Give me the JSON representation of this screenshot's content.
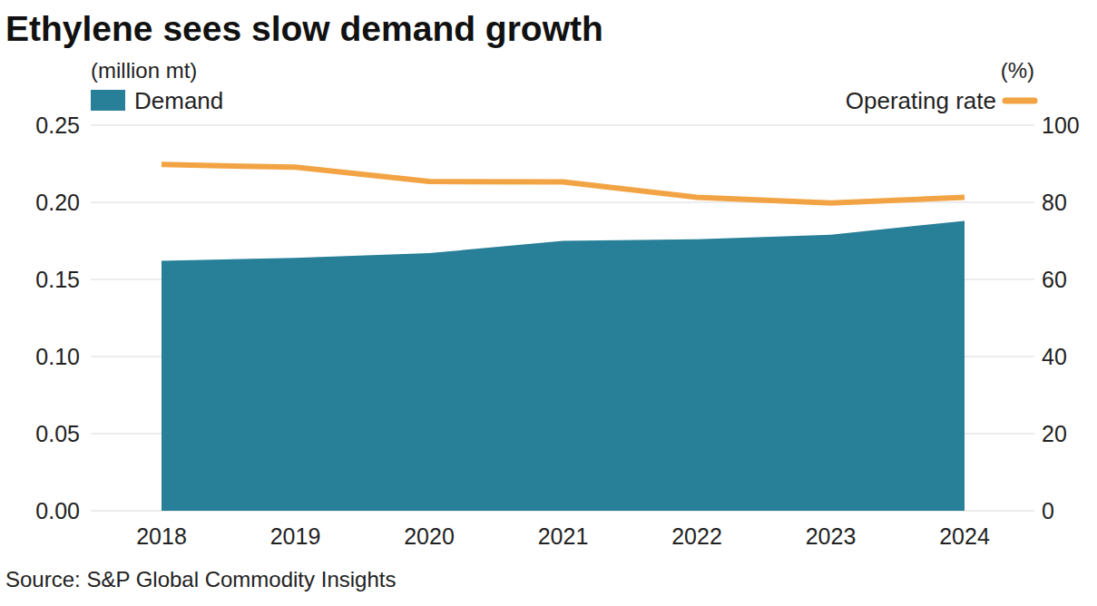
{
  "chart_data": {
    "type": "area",
    "title": "Ethylene sees slow demand growth",
    "y_label": "(million mt)",
    "y2_label": "(%)",
    "source": "Source: S&P Global Commodity Insights",
    "categories": [
      "2018",
      "2019",
      "2020",
      "2021",
      "2022",
      "2023",
      "2024"
    ],
    "series": [
      {
        "name": "Demand",
        "type": "area",
        "color": "#277f98",
        "values": [
          0.162,
          0.164,
          0.167,
          0.175,
          0.176,
          0.179,
          0.188
        ]
      },
      {
        "name": "Operating rate",
        "type": "line",
        "color": "#f2a444",
        "axis": "y2",
        "values": [
          89.8,
          89.1,
          85.4,
          85.3,
          81.3,
          79.8,
          81.3
        ]
      }
    ],
    "ylim": [
      0,
      0.25
    ],
    "yticks": [
      {
        "value": 0,
        "label": "0.00"
      },
      {
        "value": 0.05,
        "label": "0.05"
      },
      {
        "value": 0.1,
        "label": "0.10"
      },
      {
        "value": 0.15,
        "label": "0.15"
      },
      {
        "value": 0.2,
        "label": "0.20"
      },
      {
        "value": 0.25,
        "label": "0.25"
      }
    ],
    "y2lim": [
      0,
      100
    ],
    "y2ticks": [
      0,
      20,
      40,
      60,
      80,
      100
    ],
    "grid": true
  }
}
